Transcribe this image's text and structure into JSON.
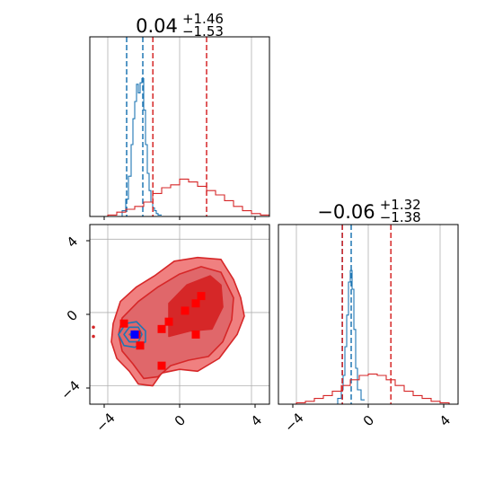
{
  "colors": {
    "red": "#d62728",
    "blue": "#1f77b4",
    "fill_light": "#f08080",
    "fill_mid": "#e0676a",
    "fill_dark": "#d62728",
    "grid": "#b0b0b0",
    "marker_red": "#ff0000",
    "marker_blue": "#0000ff"
  },
  "chart_data": [
    {
      "type": "area",
      "panel": "marginal-x",
      "title": {
        "value": "0.04",
        "plus": "+1.46",
        "minus": "−1.53"
      },
      "xlim": [
        -5,
        5
      ],
      "grid": true,
      "series": [
        {
          "color": "#1f77b4",
          "x": [
            -3.6,
            -3.2,
            -3.0,
            -2.85,
            -2.7,
            -2.6,
            -2.5,
            -2.4,
            -2.3,
            -2.2,
            -2.1,
            -2.0,
            -1.9,
            -1.8,
            -1.7,
            -1.6,
            -1.5,
            -1.4,
            -1.3,
            -1.2,
            -1.0
          ],
          "y": [
            0.0,
            0.04,
            0.12,
            0.28,
            0.5,
            0.68,
            0.8,
            0.92,
            0.86,
            0.93,
            0.96,
            0.74,
            0.5,
            0.3,
            0.18,
            0.1,
            0.06,
            0.04,
            0.02,
            0.01,
            0.0
          ],
          "quantiles": [
            -2.95,
            -2.05
          ]
        },
        {
          "color": "#d62728",
          "x": [
            -5.0,
            -4.5,
            -4.0,
            -3.5,
            -3.0,
            -2.5,
            -2.0,
            -1.5,
            -1.0,
            -0.5,
            0.0,
            0.5,
            1.0,
            1.5,
            2.0,
            2.5,
            3.0,
            3.5,
            4.0,
            4.5,
            5.0
          ],
          "y": [
            0.0,
            0.0,
            0.01,
            0.03,
            0.05,
            0.07,
            0.1,
            0.16,
            0.2,
            0.22,
            0.26,
            0.24,
            0.21,
            0.18,
            0.15,
            0.11,
            0.07,
            0.04,
            0.02,
            0.01,
            0.0
          ],
          "quantiles": [
            -1.49,
            1.5
          ]
        }
      ]
    },
    {
      "type": "area",
      "panel": "marginal-y",
      "title": {
        "value": "−0.06",
        "plus": "+1.32",
        "minus": "−1.38"
      },
      "xlim": [
        -5,
        5
      ],
      "grid": true,
      "xticks": [
        "−4",
        "0",
        "4"
      ],
      "series": [
        {
          "color": "#1f77b4",
          "x": [
            -2.0,
            -1.7,
            -1.5,
            -1.4,
            -1.3,
            -1.2,
            -1.1,
            -1.0,
            -0.9,
            -0.8,
            -0.7,
            -0.6,
            -0.4,
            -0.2
          ],
          "y": [
            0.0,
            0.04,
            0.1,
            0.2,
            0.4,
            0.62,
            0.85,
            0.93,
            0.8,
            0.52,
            0.25,
            0.1,
            0.03,
            0.0
          ],
          "quantiles": [
            -1.45,
            -0.95
          ]
        },
        {
          "color": "#d62728",
          "x": [
            -5.0,
            -4.5,
            -4.0,
            -3.5,
            -3.0,
            -2.5,
            -2.0,
            -1.5,
            -1.0,
            -0.5,
            0.0,
            0.5,
            1.0,
            1.5,
            2.0,
            2.5,
            3.0,
            3.5,
            4.0,
            4.5,
            5.0
          ],
          "y": [
            0.0,
            0.0,
            0.01,
            0.02,
            0.04,
            0.06,
            0.09,
            0.13,
            0.17,
            0.2,
            0.21,
            0.2,
            0.17,
            0.13,
            0.09,
            0.06,
            0.04,
            0.02,
            0.01,
            0.0,
            0.0
          ],
          "quantiles": [
            -1.44,
            1.26
          ]
        }
      ]
    },
    {
      "type": "scatter",
      "panel": "joint",
      "xlim": [
        -5,
        5
      ],
      "ylim": [
        -5,
        4.8
      ],
      "grid": true,
      "xticks": [
        "−4",
        "0",
        "4"
      ],
      "yticks": [
        "4",
        "0",
        "−4"
      ],
      "red_contours": [
        [
          [
            -3.5,
            -2.5
          ],
          [
            -2.8,
            -3.2
          ],
          [
            -2.3,
            -3.9
          ],
          [
            -1.5,
            -4.0
          ],
          [
            -1.0,
            -3.3
          ],
          [
            0.0,
            -3.1
          ],
          [
            1.0,
            -3.2
          ],
          [
            2.2,
            -2.5
          ],
          [
            3.2,
            -1.2
          ],
          [
            3.6,
            -0.2
          ],
          [
            3.4,
            0.8
          ],
          [
            3.0,
            1.8
          ],
          [
            2.3,
            2.9
          ],
          [
            1.0,
            3.0
          ],
          [
            -0.3,
            2.8
          ],
          [
            -1.4,
            2.0
          ],
          [
            -2.4,
            1.4
          ],
          [
            -3.3,
            0.6
          ],
          [
            -3.7,
            -0.6
          ],
          [
            -3.8,
            -1.6
          ]
        ],
        [
          [
            -3.2,
            -2.1
          ],
          [
            -2.6,
            -2.8
          ],
          [
            -2.0,
            -3.6
          ],
          [
            -1.2,
            -3.5
          ],
          [
            -0.5,
            -2.9
          ],
          [
            0.5,
            -2.6
          ],
          [
            1.6,
            -2.4
          ],
          [
            2.4,
            -1.6
          ],
          [
            2.9,
            -0.4
          ],
          [
            3.0,
            0.8
          ],
          [
            2.3,
            2.2
          ],
          [
            1.2,
            2.5
          ],
          [
            0.0,
            2.1
          ],
          [
            -1.2,
            1.4
          ],
          [
            -2.3,
            0.6
          ],
          [
            -3.2,
            -0.3
          ],
          [
            -3.4,
            -1.2
          ]
        ],
        [
          [
            -0.6,
            -1.3
          ],
          [
            0.6,
            -1.0
          ],
          [
            1.8,
            -0.9
          ],
          [
            2.4,
            0.3
          ],
          [
            2.3,
            1.5
          ],
          [
            1.7,
            2.0
          ],
          [
            0.4,
            1.5
          ],
          [
            -0.6,
            0.5
          ]
        ]
      ],
      "blue_contours": [
        [
          [
            -3.4,
            -1.2
          ],
          [
            -3.0,
            -0.6
          ],
          [
            -2.4,
            -0.5
          ],
          [
            -1.9,
            -1.0
          ],
          [
            -1.9,
            -1.6
          ],
          [
            -2.5,
            -1.9
          ],
          [
            -3.1,
            -1.8
          ]
        ],
        [
          [
            -3.1,
            -1.2
          ],
          [
            -2.8,
            -0.8
          ],
          [
            -2.3,
            -0.8
          ],
          [
            -2.1,
            -1.2
          ],
          [
            -2.3,
            -1.6
          ],
          [
            -2.8,
            -1.6
          ]
        ],
        [
          [
            -2.8,
            -1.2
          ],
          [
            -2.5,
            -1.0
          ],
          [
            -2.3,
            -1.2
          ],
          [
            -2.5,
            -1.4
          ]
        ]
      ],
      "red_points": [
        {
          "x": -3.1,
          "y": -0.6
        },
        {
          "x": -2.4,
          "y": -1.2
        },
        {
          "x": -2.2,
          "y": -1.8
        },
        {
          "x": -1.0,
          "y": -2.9
        },
        {
          "x": -1.0,
          "y": -0.9
        },
        {
          "x": -0.6,
          "y": -0.5
        },
        {
          "x": 0.3,
          "y": 0.1
        },
        {
          "x": 0.9,
          "y": 0.5
        },
        {
          "x": 1.2,
          "y": 0.9
        },
        {
          "x": 0.9,
          "y": -1.2
        }
      ],
      "blue_points": [
        {
          "x": -2.5,
          "y": -1.2
        }
      ],
      "outliers": [
        {
          "x": -4.8,
          "y": -0.8
        },
        {
          "x": -4.8,
          "y": -1.3
        }
      ]
    }
  ]
}
